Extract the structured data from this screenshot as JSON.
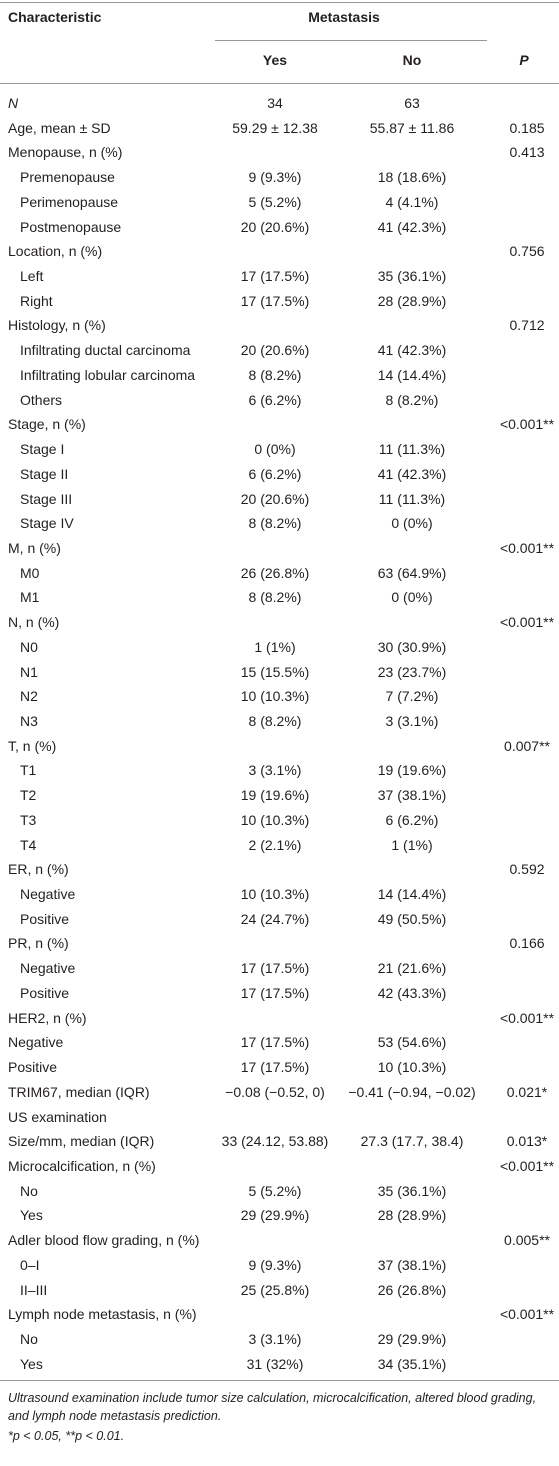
{
  "header": {
    "characteristic": "Characteristic",
    "metastasis": "Metastasis",
    "yes": "Yes",
    "no": "No",
    "p": "P"
  },
  "table": {
    "rows": [
      {
        "label": "N",
        "yes": "34",
        "no": "63"
      },
      {
        "label": "Age, mean ± SD",
        "yes": "59.29 ± 12.38",
        "no": "55.87 ± 11.86",
        "p": "0.185"
      },
      {
        "label": "Menopause, n (%)",
        "p": "0.413",
        "rows": [
          {
            "label": "Premenopause",
            "yes": "9 (9.3%)",
            "no": "18 (18.6%)"
          },
          {
            "label": "Perimenopause",
            "yes": "5 (5.2%)",
            "no": "4 (4.1%)"
          },
          {
            "label": "Postmenopause",
            "yes": "20 (20.6%)",
            "no": "41 (42.3%)"
          }
        ]
      },
      {
        "label": "Location, n (%)",
        "p": "0.756",
        "rows": [
          {
            "label": "Left",
            "yes": "17 (17.5%)",
            "no": "35 (36.1%)"
          },
          {
            "label": "Right",
            "yes": "17 (17.5%)",
            "no": "28 (28.9%)"
          }
        ]
      },
      {
        "label": "Histology, n (%)",
        "p": "0.712",
        "rows": [
          {
            "label": "Infiltrating ductal carcinoma",
            "yes": "20 (20.6%)",
            "no": "41 (42.3%)"
          },
          {
            "label": "Infiltrating lobular carcinoma",
            "yes": "8 (8.2%)",
            "no": "14 (14.4%)"
          },
          {
            "label": "Others",
            "yes": "6 (6.2%)",
            "no": "8 (8.2%)"
          }
        ]
      },
      {
        "label": "Stage, n (%)",
        "p": "<0.001**",
        "rows": [
          {
            "label": "Stage I",
            "yes": "0 (0%)",
            "no": "11 (11.3%)"
          },
          {
            "label": "Stage II",
            "yes": "6 (6.2%)",
            "no": "41 (42.3%)"
          },
          {
            "label": "Stage III",
            "yes": "20 (20.6%)",
            "no": "11 (11.3%)"
          },
          {
            "label": "Stage IV",
            "yes": "8 (8.2%)",
            "no": "0 (0%)"
          }
        ]
      },
      {
        "label": "M, n (%)",
        "p": "<0.001**",
        "rows": [
          {
            "label": "M0",
            "yes": "26 (26.8%)",
            "no": "63 (64.9%)"
          },
          {
            "label": "M1",
            "yes": "8 (8.2%)",
            "no": "0 (0%)"
          }
        ]
      },
      {
        "label": "N, n (%)",
        "p": "<0.001**",
        "rows": [
          {
            "label": "N0",
            "yes": "1 (1%)",
            "no": "30 (30.9%)"
          },
          {
            "label": "N1",
            "yes": "15 (15.5%)",
            "no": "23 (23.7%)"
          },
          {
            "label": "N2",
            "yes": "10 (10.3%)",
            "no": "7 (7.2%)"
          },
          {
            "label": "N3",
            "yes": "8 (8.2%)",
            "no": "3 (3.1%)"
          }
        ]
      },
      {
        "label": "T, n (%)",
        "p": "0.007**",
        "rows": [
          {
            "label": "T1",
            "yes": "3 (3.1%)",
            "no": "19 (19.6%)"
          },
          {
            "label": "T2",
            "yes": "19 (19.6%)",
            "no": "37 (38.1%)"
          },
          {
            "label": "T3",
            "yes": "10 (10.3%)",
            "no": "6 (6.2%)"
          },
          {
            "label": "T4",
            "yes": "2 (2.1%)",
            "no": "1 (1%)"
          }
        ]
      },
      {
        "label": "ER, n (%)",
        "p": "0.592",
        "rows": [
          {
            "label": "Negative",
            "yes": "10 (10.3%)",
            "no": "14 (14.4%)"
          },
          {
            "label": "Positive",
            "yes": "24 (24.7%)",
            "no": "49 (50.5%)"
          }
        ]
      },
      {
        "label": "PR, n (%)",
        "p": "0.166",
        "rows": [
          {
            "label": "Negative",
            "yes": "17 (17.5%)",
            "no": "21 (21.6%)"
          },
          {
            "label": "Positive",
            "yes": "17 (17.5%)",
            "no": "42 (43.3%)"
          }
        ]
      },
      {
        "label": "HER2, n (%)",
        "p": "<0.001**"
      },
      {
        "label": "Negative",
        "yes": "17 (17.5%)",
        "no": "53 (54.6%)"
      },
      {
        "label": "Positive",
        "yes": "17 (17.5%)",
        "no": "10 (10.3%)"
      },
      {
        "label": "TRIM67, median (IQR)",
        "yes": "−0.08 (−0.52, 0)",
        "no": "−0.41 (−0.94, −0.02)",
        "p": "0.021*"
      },
      {
        "label": "US examination"
      },
      {
        "label": "Size/mm, median (IQR)",
        "yes": "33 (24.12, 53.88)",
        "no": "27.3 (17.7, 38.4)",
        "p": "0.013*"
      },
      {
        "label": "Microcalcification, n (%)",
        "p": "<0.001**",
        "rows": [
          {
            "label": "No",
            "yes": "5 (5.2%)",
            "no": "35 (36.1%)"
          },
          {
            "label": "Yes",
            "yes": "29 (29.9%)",
            "no": "28 (28.9%)"
          }
        ]
      },
      {
        "label": "Adler blood flow grading, n (%)",
        "p": "0.005**",
        "rows": [
          {
            "label": "0–I",
            "yes": "9 (9.3%)",
            "no": "37 (38.1%)"
          },
          {
            "label": "II–III",
            "yes": "25 (25.8%)",
            "no": "26 (26.8%)"
          }
        ]
      },
      {
        "label": "Lymph node metastasis, n (%)",
        "p": "<0.001**",
        "rows": [
          {
            "label": "No",
            "yes": "3 (3.1%)",
            "no": "29 (29.9%)"
          },
          {
            "label": "Yes",
            "yes": "31 (32%)",
            "no": "34 (35.1%)"
          }
        ]
      }
    ]
  },
  "footnotes": [
    "Ultrasound examination include tumor size calculation, microcalcification, altered blood grading, and lymph node metastasis prediction.",
    "*p < 0.05, **p < 0.01."
  ]
}
